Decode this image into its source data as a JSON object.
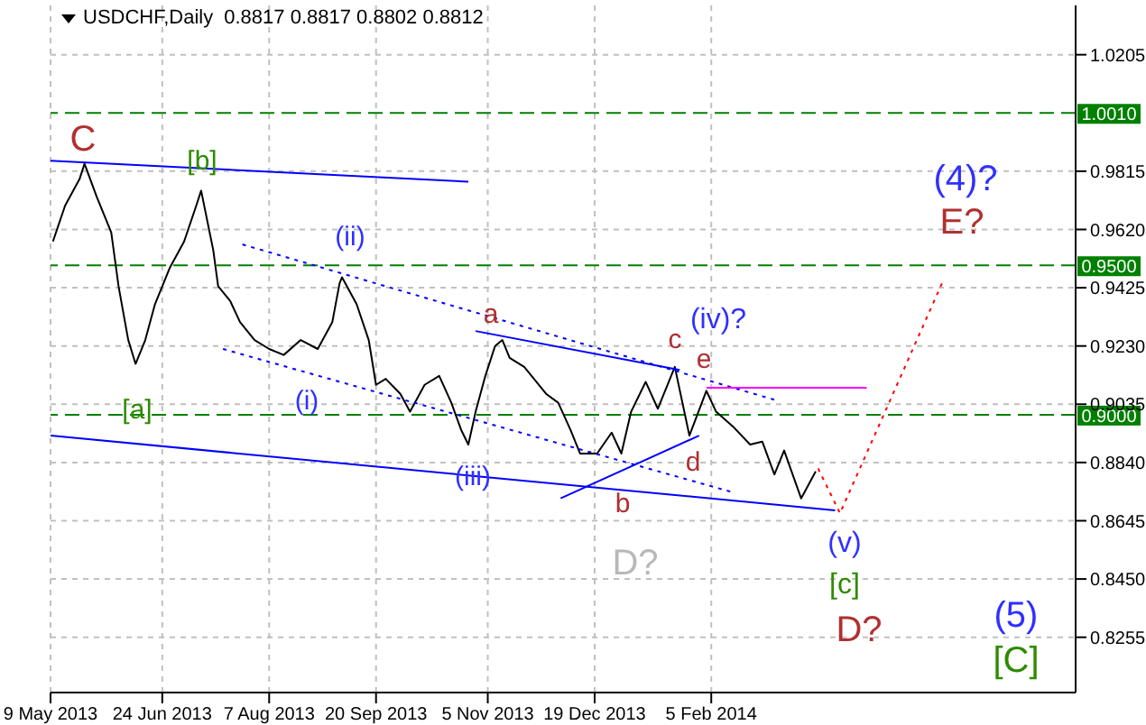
{
  "chart_data": {
    "type": "line",
    "title": "USDCHF,Daily",
    "subtitle": "0.8817 0.8817 0.8802 0.8812",
    "xlim": [
      "2013-05-09",
      "2014-07-05"
    ],
    "xticks": [
      {
        "value": "2013-05-09",
        "label": "9 May 2013"
      },
      {
        "value": "2013-06-24",
        "label": "24 Jun 2013"
      },
      {
        "value": "2013-08-07",
        "label": "7 Aug 2013"
      },
      {
        "value": "2013-09-20",
        "label": "20 Sep 2013"
      },
      {
        "value": "2013-11-05",
        "label": "5 Nov 2013"
      },
      {
        "value": "2013-12-19",
        "label": "19 Dec 2013"
      },
      {
        "value": "2014-02-05",
        "label": "5 Feb 2014"
      }
    ],
    "ylim": [
      0.807,
      1.037
    ],
    "yticks": [
      0.8255,
      {
        "value": 0.845,
        "label": "0.8450"
      },
      0.8645,
      {
        "value": 0.884,
        "label": "0.8840"
      },
      0.9035,
      {
        "value": 0.923,
        "label": "0.9230"
      },
      0.9425,
      {
        "value": 0.962,
        "label": "0.9620"
      },
      0.9815,
      1.0205
    ],
    "grid": true,
    "marker": "none",
    "series": [
      {
        "color": "#000000",
        "x": [
          "2013-05-10",
          "2013-05-15",
          "2013-05-21",
          "2013-05-23",
          "2013-05-28",
          "2013-06-03",
          "2013-06-06",
          "2013-06-10",
          "2013-06-13",
          "2013-06-17",
          "2013-06-21",
          "2013-06-27",
          "2013-07-03",
          "2013-07-08",
          "2013-07-10",
          "2013-07-15",
          "2013-07-17",
          "2013-07-22",
          "2013-07-26",
          "2013-08-01",
          "2013-08-07",
          "2013-08-13",
          "2013-08-20",
          "2013-08-27",
          "2013-09-02",
          "2013-09-05",
          "2013-09-06",
          "2013-09-12",
          "2013-09-17",
          "2013-09-20",
          "2013-09-24",
          "2013-09-30",
          "2013-10-04",
          "2013-10-10",
          "2013-10-16",
          "2013-10-21",
          "2013-10-25",
          "2013-10-28",
          "2013-10-31",
          "2013-11-04",
          "2013-11-08",
          "2013-11-11",
          "2013-11-14",
          "2013-11-20",
          "2013-11-25",
          "2013-11-29",
          "2013-12-04",
          "2013-12-09",
          "2013-12-13",
          "2013-12-20",
          "2013-12-26",
          "2013-12-30",
          "2014-01-03",
          "2014-01-09",
          "2014-01-14",
          "2014-01-21",
          "2014-01-27",
          "2014-02-03",
          "2014-02-07",
          "2014-02-14",
          "2014-02-21",
          "2014-02-26",
          "2014-03-03",
          "2014-03-07",
          "2014-03-14",
          "2014-03-20"
        ],
        "values": [
          0.958,
          0.97,
          0.979,
          0.984,
          0.973,
          0.961,
          0.943,
          0.925,
          0.917,
          0.925,
          0.937,
          0.949,
          0.958,
          0.97,
          0.975,
          0.955,
          0.943,
          0.938,
          0.931,
          0.925,
          0.922,
          0.92,
          0.925,
          0.922,
          0.931,
          0.944,
          0.946,
          0.937,
          0.925,
          0.91,
          0.912,
          0.907,
          0.901,
          0.91,
          0.913,
          0.904,
          0.895,
          0.89,
          0.901,
          0.913,
          0.923,
          0.925,
          0.919,
          0.916,
          0.911,
          0.907,
          0.904,
          0.895,
          0.887,
          0.887,
          0.894,
          0.887,
          0.901,
          0.911,
          0.902,
          0.916,
          0.893,
          0.908,
          0.901,
          0.896,
          0.89,
          0.891,
          0.88,
          0.888,
          0.872,
          0.881
        ]
      },
      {
        "color": "#0000ff",
        "line_style": "solid",
        "x": [
          "2013-05-09",
          "2013-10-28"
        ],
        "values": [
          0.985,
          0.978
        ]
      },
      {
        "color": "#0000ff",
        "line_style": "solid",
        "x": [
          "2013-05-09",
          "2014-03-28"
        ],
        "values": [
          0.893,
          0.868
        ]
      },
      {
        "color": "#0000ff",
        "line_style": "dotted",
        "x": [
          "2013-07-27",
          "2014-03-03"
        ],
        "values": [
          0.957,
          0.905
        ]
      },
      {
        "color": "#0000ff",
        "line_style": "dotted",
        "x": [
          "2013-07-19",
          "2014-02-14"
        ],
        "values": [
          0.922,
          0.874
        ]
      },
      {
        "color": "#0000ff",
        "line_style": "solid",
        "x": [
          "2013-10-31",
          "2014-01-23"
        ],
        "values": [
          0.928,
          0.915
        ]
      },
      {
        "color": "#0000ff",
        "line_style": "solid",
        "x": [
          "2013-12-05",
          "2014-01-31"
        ],
        "values": [
          0.872,
          0.893
        ]
      },
      {
        "color": "#ff00ff",
        "line_style": "solid",
        "x": [
          "2014-02-03",
          "2014-04-10"
        ],
        "values": [
          0.909,
          0.909
        ]
      },
      {
        "color": "#ff0000",
        "line_style": "dotted",
        "x": [
          "2014-03-21",
          "2014-03-30",
          "2014-05-11"
        ],
        "values": [
          0.882,
          0.867,
          0.944
        ]
      }
    ],
    "ref_lines": [
      {
        "axis": "y",
        "value": 1.001,
        "label": "1.0010",
        "color": "#008000",
        "line_style": "dashed"
      },
      {
        "axis": "y",
        "value": 0.95,
        "label": "0.9500",
        "color": "#008000",
        "line_style": "dashed"
      },
      {
        "axis": "y",
        "value": 0.9,
        "label": "0.9000",
        "color": "#008000",
        "line_style": "dashed"
      }
    ],
    "annotations": [
      "C",
      "[b]",
      "(ii)",
      "[a]",
      "(i)",
      "(iii)",
      "a",
      "b",
      "c",
      "d",
      "e",
      "(iv)?",
      "D?",
      "(v)",
      "[c]",
      "D?",
      "(4)?",
      "E?",
      "(5)",
      "[C]"
    ]
  }
}
